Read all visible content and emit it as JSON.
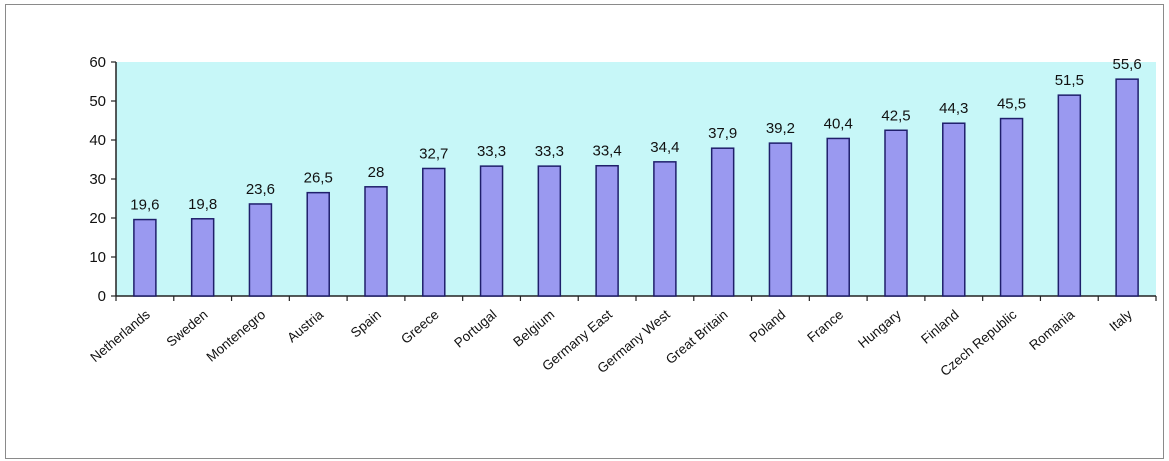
{
  "colors": {
    "plot_background": "#c7f7f8",
    "bar_fill": "#9a99f0",
    "bar_stroke": "#1f1f6b",
    "axis": "#222222"
  },
  "chart_data": {
    "type": "bar",
    "title": "",
    "xlabel": "",
    "ylabel": "",
    "ylim": [
      0,
      60
    ],
    "yticks": [
      "0",
      "10",
      "20",
      "30",
      "40",
      "50",
      "60"
    ],
    "grid": false,
    "legend": "none",
    "categories": [
      "Netherlands",
      "Sweden",
      "Montenegro",
      "Austria",
      "Spain",
      "Greece",
      "Portugal",
      "Belgium",
      "Germany East",
      "Germany West",
      "Great Britain",
      "Poland",
      "France",
      "Hungary",
      "Finland",
      "Czech Republic",
      "Romania",
      "Italy"
    ],
    "values": [
      19.6,
      19.8,
      23.6,
      26.5,
      28,
      32.7,
      33.3,
      33.3,
      33.4,
      34.4,
      37.9,
      39.2,
      40.4,
      42.5,
      44.3,
      45.5,
      51.5,
      55.6
    ],
    "data_labels": [
      "19,6",
      "19,8",
      "23,6",
      "26,5",
      "28",
      "32,7",
      "33,3",
      "33,3",
      "33,4",
      "34,4",
      "37,9",
      "39,2",
      "40,4",
      "42,5",
      "44,3",
      "45,5",
      "51,5",
      "55,6"
    ]
  }
}
